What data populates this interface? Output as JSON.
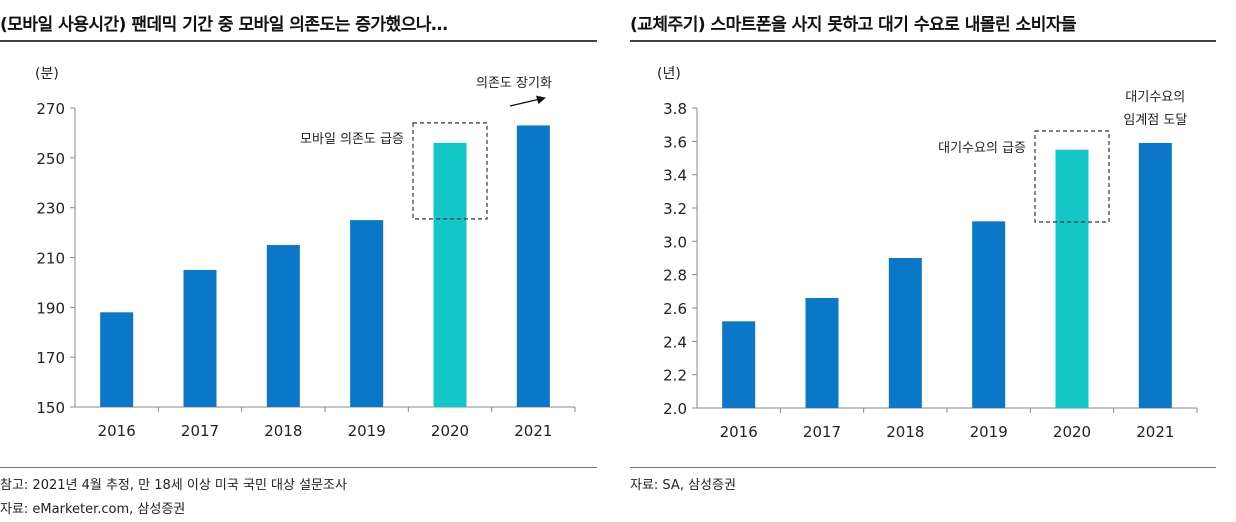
{
  "charts": [
    {
      "title": "(모바일 사용시간) 팬데믹 기간 중 모바일 의존도는 증가했으나…",
      "notes": [
        "참고: 2021년 4월 추정, 만 18세 이상 미국 국민 대상 설문조사",
        "자료: eMarketer.com, 삼성증권"
      ],
      "annotations": {
        "box_label": "모바일 의존도 급증",
        "arrow_label": "의존도 장기화"
      }
    },
    {
      "title": "(교체주기) 스마트폰을 사지 못하고 대기 수요로 내몰린 소비자들",
      "notes": [
        "자료: SA, 삼성증권"
      ],
      "annotations": {
        "box_label": "대기수요의 급증",
        "top_label_line1": "대기수요의",
        "top_label_line2": "임계점 도달"
      }
    }
  ],
  "colors": {
    "bar": "#0a77c8",
    "highlight": "#13c6c8",
    "axis": "#888888",
    "text": "#222222"
  },
  "chart_data": [
    {
      "type": "bar",
      "title": "(모바일 사용시간) 팬데믹 기간 중 모바일 의존도는 증가했으나…",
      "unit_label": "(분)",
      "categories": [
        "2016",
        "2017",
        "2018",
        "2019",
        "2020",
        "2021"
      ],
      "values": [
        188,
        205,
        215,
        225,
        256,
        263
      ],
      "highlight_index": 4,
      "ylim": [
        150,
        270
      ],
      "yticks": [
        150,
        170,
        190,
        210,
        230,
        250,
        270
      ],
      "ytick_labels": [
        "150",
        "170",
        "190",
        "210",
        "230",
        "250",
        "270"
      ],
      "grid": false
    },
    {
      "type": "bar",
      "title": "(교체주기) 스마트폰을 사지 못하고 대기 수요로 내몰린 소비자들",
      "unit_label": "(년)",
      "categories": [
        "2016",
        "2017",
        "2018",
        "2019",
        "2020",
        "2021"
      ],
      "values": [
        2.52,
        2.66,
        2.9,
        3.12,
        3.55,
        3.59
      ],
      "highlight_index": 4,
      "ylim": [
        2.0,
        3.8
      ],
      "yticks": [
        2.0,
        2.2,
        2.4,
        2.6,
        2.8,
        3.0,
        3.2,
        3.4,
        3.6,
        3.8
      ],
      "ytick_labels": [
        "2.0",
        "2.2",
        "2.4",
        "2.6",
        "2.8",
        "3.0",
        "3.2",
        "3.4",
        "3.6",
        "3.8"
      ],
      "grid": false
    }
  ]
}
